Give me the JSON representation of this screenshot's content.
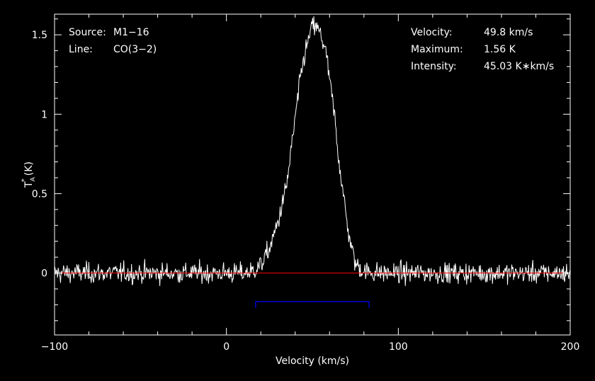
{
  "chart_data": {
    "type": "line",
    "xlabel": "Velocity (km/s)",
    "ylabel": "T",
    "ylabel_sub": "A",
    "ylabel_sup": "*",
    "ylabel_unit": "(K)",
    "xlim": [
      -100,
      200
    ],
    "ylim": [
      -0.39,
      1.63
    ],
    "x_ticks": [
      -100,
      0,
      100,
      200
    ],
    "x_tick_labels": [
      "−100",
      "0",
      "100",
      "200"
    ],
    "y_ticks": [
      0,
      0.5,
      1,
      1.5
    ],
    "y_tick_labels": [
      "0",
      "0.5",
      "1",
      "1.5"
    ],
    "x_minor_step": 20,
    "y_minor_step": 0.1,
    "grid": false,
    "info_left": [
      {
        "key": "Source:",
        "value": "M1−16"
      },
      {
        "key": "Line:",
        "value": "CO(3−2)"
      }
    ],
    "info_right": [
      {
        "key": "Velocity:",
        "value": "49.8 km/s"
      },
      {
        "key": "Maximum:",
        "value": "1.56 K"
      },
      {
        "key": "Intensity:",
        "value": "45.03 K∗km/s"
      }
    ],
    "baseline": {
      "value": 0,
      "color": "#ff0000"
    },
    "window": {
      "x_start": 17,
      "x_end": 83,
      "y": -0.18,
      "tick_to": -0.22,
      "color": "#0000ff"
    },
    "line_color": "#ffffff",
    "axis_color": "#ffffff",
    "series": [
      {
        "x": [
          -100,
          -90,
          -80,
          -70,
          -60,
          -50,
          -40,
          -30,
          -20,
          -10,
          0,
          10,
          15,
          20,
          25,
          30,
          35,
          38,
          40,
          43,
          45,
          48,
          50,
          52,
          55,
          58,
          60,
          63,
          65,
          68,
          70,
          73,
          75,
          80,
          90,
          100,
          110,
          120,
          130,
          140,
          150,
          160,
          170,
          180,
          190,
          200
        ],
        "y": [
          0,
          0,
          0,
          0,
          0,
          0,
          0,
          0,
          0,
          0,
          0,
          0,
          0.01,
          0.05,
          0.15,
          0.32,
          0.55,
          0.8,
          0.98,
          1.22,
          1.35,
          1.48,
          1.56,
          1.55,
          1.5,
          1.38,
          1.22,
          0.98,
          0.75,
          0.5,
          0.32,
          0.15,
          0.06,
          0.01,
          0,
          0,
          0,
          0,
          0,
          0,
          0,
          0,
          0,
          0,
          0,
          0
        ],
        "noise_rms": 0.055,
        "channel_width": 0.35
      }
    ]
  }
}
